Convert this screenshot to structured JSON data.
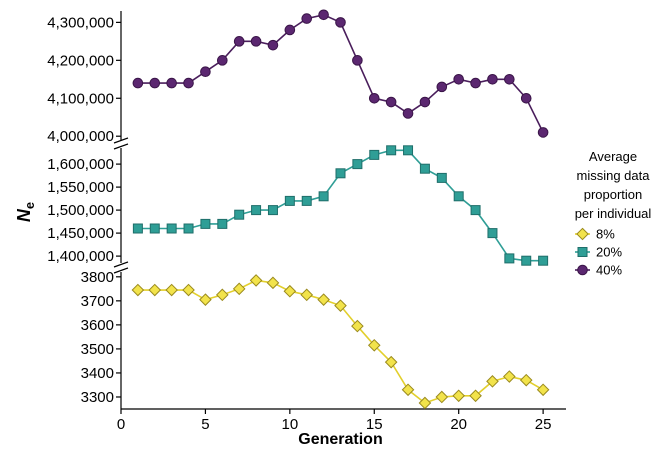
{
  "chart_data": {
    "type": "line",
    "xlabel": "Generation",
    "ylabel_main": "N",
    "ylabel_sub": "e",
    "xlim": [
      0,
      26
    ],
    "x_ticks": [
      0,
      5,
      10,
      15,
      20,
      25
    ],
    "x": [
      1,
      2,
      3,
      4,
      5,
      6,
      7,
      8,
      9,
      10,
      11,
      12,
      13,
      14,
      15,
      16,
      17,
      18,
      19,
      20,
      21,
      22,
      23,
      24,
      25
    ],
    "grid": false,
    "axis_breaks": true,
    "legend": {
      "title_lines": [
        "Average",
        "missing data",
        "proportion",
        "per individual"
      ],
      "position": "right"
    },
    "panels": [
      {
        "ylim": [
          3990000,
          4330000
        ],
        "ticks": [
          4000000,
          4100000,
          4200000,
          4300000
        ],
        "tick_labels": [
          "4,000,000",
          "4,100,000",
          "4,200,000",
          "4,300,000"
        ]
      },
      {
        "ylim": [
          1385000,
          1635000
        ],
        "ticks": [
          1400000,
          1450000,
          1500000,
          1550000,
          1600000
        ],
        "tick_labels": [
          "1,400,000",
          "1,450,000",
          "1,500,000",
          "1,550,000",
          "1,600,000"
        ]
      },
      {
        "ylim": [
          3250,
          3820
        ],
        "ticks": [
          3300,
          3400,
          3500,
          3600,
          3700,
          3800
        ],
        "tick_labels": [
          "3300",
          "3400",
          "3500",
          "3600",
          "3700",
          "3800"
        ]
      }
    ],
    "series": [
      {
        "name": "8%",
        "panel": 2,
        "marker": "diamond",
        "color": "#f2e34b",
        "stroke": "#9a8a1e",
        "line": "#e2cf2c",
        "values": [
          3745,
          3745,
          3745,
          3745,
          3705,
          3725,
          3750,
          3785,
          3775,
          3740,
          3725,
          3705,
          3680,
          3595,
          3515,
          3445,
          3330,
          3275,
          3300,
          3305,
          3305,
          3365,
          3385,
          3370,
          3330
        ]
      },
      {
        "name": "20%",
        "panel": 1,
        "marker": "square",
        "color": "#2f9e96",
        "stroke": "#1f6e6a",
        "line": "#2f9e96",
        "values": [
          1460000,
          1460000,
          1460000,
          1460000,
          1470000,
          1470000,
          1490000,
          1500000,
          1500000,
          1520000,
          1520000,
          1530000,
          1580000,
          1600000,
          1620000,
          1630000,
          1630000,
          1590000,
          1570000,
          1530000,
          1500000,
          1450000,
          1395000,
          1390000,
          1390000
        ]
      },
      {
        "name": "40%",
        "panel": 0,
        "marker": "circle",
        "color": "#5b2770",
        "stroke": "#3a1548",
        "line": "#4a1e5c",
        "values": [
          4140000,
          4140000,
          4140000,
          4140000,
          4170000,
          4200000,
          4250000,
          4250000,
          4240000,
          4280000,
          4310000,
          4320000,
          4300000,
          4200000,
          4100000,
          4090000,
          4060000,
          4090000,
          4130000,
          4150000,
          4140000,
          4150000,
          4150000,
          4100000,
          4010000
        ]
      }
    ]
  }
}
